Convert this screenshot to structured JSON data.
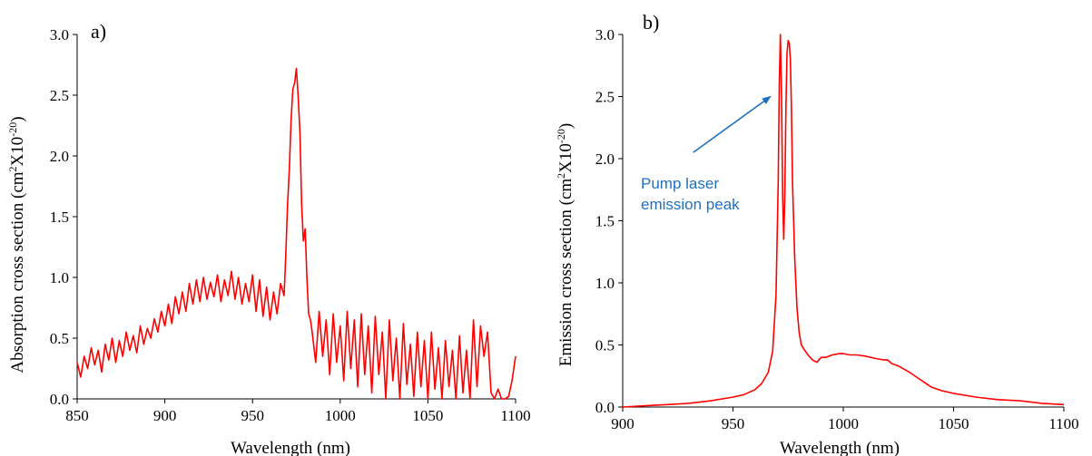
{
  "chart_data": [
    {
      "type": "line",
      "panel_label": "a)",
      "xlabel": "Wavelength (nm)",
      "ylabel": {
        "prefix": "Absorption cross section (cm",
        "sup1": "2",
        "mid": "X10",
        "sup2": "-20",
        "suffix": ")"
      },
      "xlim": [
        850,
        1100
      ],
      "ylim": [
        0,
        3.0
      ],
      "xticks": [
        "850",
        "900",
        "950",
        "1000",
        "1050",
        "1100"
      ],
      "yticks": [
        "0.0",
        "0.5",
        "1.0",
        "1.5",
        "2.0",
        "2.5",
        "3.0"
      ],
      "grid": false,
      "series": [
        {
          "color": "#ff0000",
          "x": [
            850,
            852,
            854,
            856,
            858,
            860,
            862,
            864,
            866,
            868,
            870,
            872,
            874,
            876,
            878,
            880,
            882,
            884,
            886,
            888,
            890,
            892,
            894,
            896,
            898,
            900,
            902,
            904,
            906,
            908,
            910,
            912,
            914,
            916,
            918,
            920,
            922,
            924,
            926,
            928,
            930,
            932,
            934,
            936,
            938,
            940,
            942,
            944,
            946,
            948,
            950,
            952,
            954,
            956,
            958,
            960,
            962,
            964,
            966,
            968,
            969,
            970,
            971,
            972,
            973,
            974,
            975,
            976,
            977,
            978,
            979,
            980,
            981,
            982,
            983,
            984,
            986,
            988,
            990,
            992,
            994,
            996,
            998,
            1000,
            1002,
            1004,
            1006,
            1008,
            1010,
            1012,
            1014,
            1016,
            1018,
            1020,
            1022,
            1024,
            1026,
            1028,
            1030,
            1032,
            1034,
            1036,
            1038,
            1040,
            1042,
            1044,
            1046,
            1048,
            1050,
            1052,
            1054,
            1056,
            1058,
            1060,
            1062,
            1064,
            1066,
            1068,
            1070,
            1072,
            1074,
            1076,
            1078,
            1080,
            1082,
            1084,
            1086,
            1088,
            1090,
            1092,
            1094,
            1096,
            1098,
            1100
          ],
          "y": [
            0.3,
            0.18,
            0.35,
            0.25,
            0.42,
            0.28,
            0.4,
            0.22,
            0.45,
            0.32,
            0.5,
            0.3,
            0.48,
            0.35,
            0.55,
            0.4,
            0.52,
            0.38,
            0.6,
            0.45,
            0.58,
            0.5,
            0.66,
            0.55,
            0.72,
            0.6,
            0.78,
            0.62,
            0.84,
            0.7,
            0.88,
            0.72,
            0.95,
            0.78,
            0.98,
            0.8,
            1.0,
            0.82,
            0.96,
            0.84,
            1.02,
            0.8,
            0.98,
            0.85,
            1.05,
            0.82,
            1.0,
            0.78,
            0.95,
            0.8,
            1.02,
            0.72,
            0.98,
            0.68,
            0.92,
            0.65,
            0.88,
            0.7,
            0.95,
            0.85,
            1.2,
            1.6,
            1.9,
            2.3,
            2.55,
            2.6,
            2.72,
            2.5,
            2.2,
            1.6,
            1.3,
            1.4,
            1.0,
            0.7,
            0.65,
            0.55,
            0.3,
            0.72,
            0.35,
            0.65,
            0.2,
            0.7,
            0.3,
            0.6,
            0.15,
            0.72,
            0.25,
            0.65,
            0.1,
            0.7,
            0.2,
            0.6,
            0.05,
            0.68,
            0.2,
            0.55,
            0.0,
            0.65,
            0.15,
            0.5,
            0.0,
            0.62,
            0.12,
            0.45,
            0.02,
            0.55,
            0.1,
            0.48,
            0.0,
            0.55,
            0.08,
            0.42,
            0.0,
            0.48,
            0.1,
            0.4,
            0.0,
            0.52,
            0.05,
            0.4,
            0.0,
            0.65,
            0.1,
            0.6,
            0.35,
            0.55,
            0.05,
            0.0,
            0.08,
            0.0,
            0.0,
            0.02,
            0.15,
            0.35
          ]
        }
      ]
    },
    {
      "type": "line",
      "panel_label": "b)",
      "xlabel": "Wavelength (nm)",
      "ylabel": {
        "prefix": "Emission cross section (cm",
        "sup1": "2",
        "mid": "X10",
        "sup2": "-20",
        "suffix": ")"
      },
      "xlim": [
        900,
        1100
      ],
      "ylim": [
        0,
        3.0
      ],
      "xticks": [
        "900",
        "950",
        "1000",
        "1050",
        "1100"
      ],
      "yticks": [
        "0.0",
        "0.5",
        "1.0",
        "1.5",
        "2.0",
        "2.5",
        "3.0"
      ],
      "grid": false,
      "annotation": {
        "lines": [
          "Pump laser",
          "emission peak"
        ],
        "color": "#1f6fbf",
        "arrow_from": [
          932,
          2.05
        ],
        "arrow_to": [
          967,
          2.5
        ]
      },
      "series": [
        {
          "color": "#ff0000",
          "x": [
            900,
            910,
            920,
            930,
            940,
            950,
            955,
            960,
            963,
            966,
            968,
            969.5,
            970.5,
            971,
            971.5,
            972,
            972.5,
            973,
            973.5,
            974,
            974.5,
            975,
            975.5,
            976,
            976.5,
            977,
            978,
            979,
            980,
            981,
            982,
            984,
            986,
            988,
            990,
            992,
            995,
            998,
            1000,
            1003,
            1006,
            1010,
            1015,
            1018,
            1020,
            1022,
            1025,
            1030,
            1035,
            1040,
            1045,
            1050,
            1060,
            1070,
            1080,
            1090,
            1100
          ],
          "y": [
            0.0,
            0.01,
            0.02,
            0.03,
            0.05,
            0.08,
            0.1,
            0.14,
            0.19,
            0.28,
            0.45,
            0.9,
            1.8,
            2.6,
            3.0,
            2.5,
            1.7,
            1.35,
            1.7,
            2.4,
            2.85,
            2.95,
            2.93,
            2.8,
            2.4,
            1.8,
            1.2,
            0.8,
            0.6,
            0.5,
            0.47,
            0.42,
            0.38,
            0.36,
            0.4,
            0.4,
            0.42,
            0.43,
            0.43,
            0.42,
            0.42,
            0.41,
            0.39,
            0.38,
            0.38,
            0.35,
            0.33,
            0.28,
            0.22,
            0.16,
            0.13,
            0.11,
            0.08,
            0.06,
            0.05,
            0.03,
            0.02
          ]
        }
      ]
    }
  ]
}
